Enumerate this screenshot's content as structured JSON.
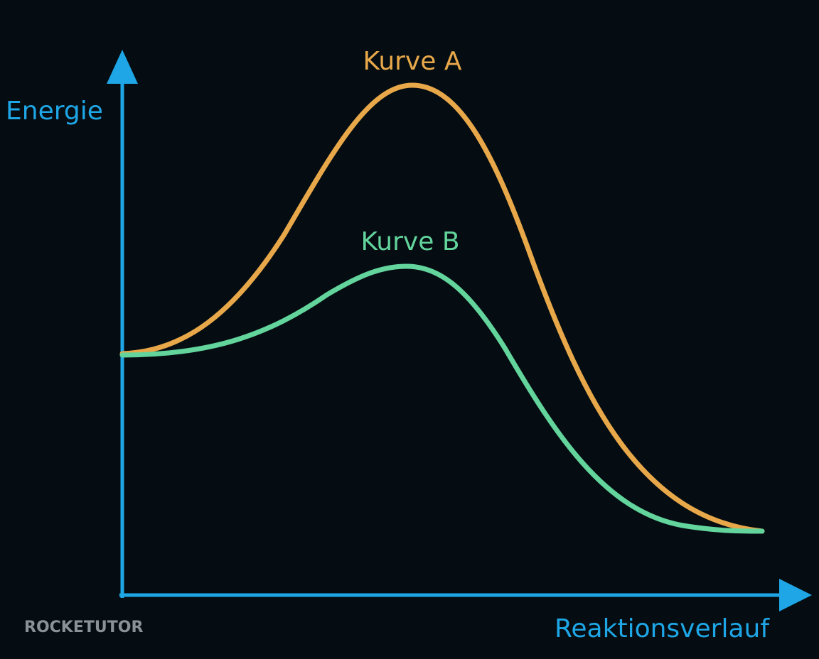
{
  "labels": {
    "curve_a": "Kurve A",
    "curve_b": "Kurve B",
    "y_axis": "Energie",
    "x_axis": "Reaktionsverlauf"
  },
  "watermark": "ROCKETUTOR"
}
